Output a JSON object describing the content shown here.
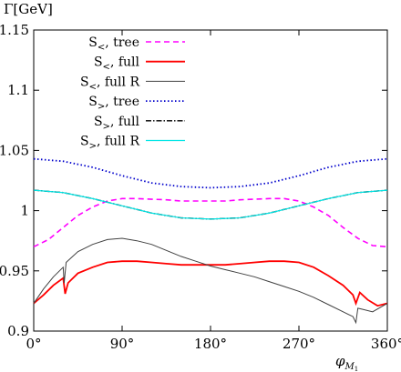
{
  "chart_data": {
    "type": "line",
    "ylabel": "Γ[GeV]",
    "xlabel": "φ",
    "xlabel_sub": "M",
    "xlabel_subsub": "1",
    "xlim": [
      0,
      360
    ],
    "ylim": [
      0.9,
      1.15
    ],
    "x_ticks": [
      0,
      90,
      180,
      270,
      360
    ],
    "x_tick_labels": [
      "0°",
      "90°",
      "180°",
      "270°",
      "360°"
    ],
    "y_ticks": [
      0.9,
      0.95,
      1.0,
      1.05,
      1.1,
      1.15
    ],
    "y_tick_labels": [
      "0.9",
      "0.95",
      "1",
      "1.05",
      "1.1",
      "1.15"
    ],
    "grid": false,
    "legend_position": "top-left",
    "series": [
      {
        "name": "S<, tree",
        "label_base": "S",
        "label_sub": "<",
        "label_rest": ", tree",
        "color": "#ff00ff",
        "dash": "6,4",
        "width": 1.6,
        "x": [
          0,
          15,
          30,
          45,
          60,
          75,
          90,
          105,
          120,
          135,
          150,
          165,
          180,
          195,
          210,
          225,
          240,
          255,
          270,
          285,
          300,
          315,
          330,
          345,
          360
        ],
        "y": [
          0.97,
          0.976,
          0.986,
          0.996,
          1.003,
          1.008,
          1.01,
          1.01,
          1.0095,
          1.009,
          1.008,
          1.008,
          1.008,
          1.008,
          1.009,
          1.0095,
          1.01,
          1.01,
          1.008,
          1.003,
          0.996,
          0.986,
          0.977,
          0.971,
          0.97
        ]
      },
      {
        "name": "S<, full",
        "label_base": "S",
        "label_sub": "<",
        "label_rest": ", full",
        "color": "#ff0000",
        "dash": "",
        "width": 1.8,
        "x": [
          0,
          10,
          20,
          30,
          32,
          35,
          45,
          60,
          75,
          90,
          105,
          120,
          135,
          150,
          165,
          180,
          195,
          210,
          225,
          240,
          255,
          270,
          285,
          300,
          315,
          320,
          325,
          328,
          332,
          340,
          350,
          360
        ],
        "y": [
          0.923,
          0.93,
          0.938,
          0.944,
          0.931,
          0.94,
          0.948,
          0.953,
          0.957,
          0.958,
          0.958,
          0.957,
          0.956,
          0.955,
          0.955,
          0.955,
          0.955,
          0.956,
          0.957,
          0.958,
          0.958,
          0.957,
          0.953,
          0.946,
          0.938,
          0.934,
          0.93,
          0.923,
          0.932,
          0.926,
          0.921,
          0.923
        ]
      },
      {
        "name": "S<, full R",
        "label_base": "S",
        "label_sub": "<",
        "label_rest": ", full R",
        "color": "#404040",
        "dash": "",
        "width": 1.0,
        "x": [
          0,
          10,
          20,
          30,
          31,
          33,
          45,
          60,
          75,
          90,
          105,
          120,
          135,
          150,
          165,
          180,
          195,
          210,
          225,
          240,
          255,
          270,
          285,
          300,
          315,
          325,
          328,
          330,
          335,
          345,
          360
        ],
        "y": [
          0.923,
          0.935,
          0.945,
          0.953,
          0.94,
          0.957,
          0.966,
          0.972,
          0.976,
          0.977,
          0.975,
          0.972,
          0.967,
          0.962,
          0.958,
          0.954,
          0.951,
          0.948,
          0.945,
          0.941,
          0.937,
          0.933,
          0.928,
          0.922,
          0.916,
          0.912,
          0.907,
          0.919,
          0.918,
          0.916,
          0.923
        ]
      },
      {
        "name": "S>, tree",
        "label_base": "S",
        "label_sub": ">",
        "label_rest": ", tree",
        "color": "#0000cc",
        "dash": "1.5,2.5",
        "width": 1.8,
        "x": [
          0,
          30,
          60,
          90,
          120,
          150,
          180,
          210,
          240,
          270,
          300,
          330,
          360
        ],
        "y": [
          1.043,
          1.041,
          1.036,
          1.029,
          1.023,
          1.02,
          1.019,
          1.02,
          1.023,
          1.029,
          1.036,
          1.041,
          1.043
        ]
      },
      {
        "name": "S>, full",
        "label_base": "S",
        "label_sub": ">",
        "label_rest": ", full",
        "color": "#000000",
        "dash": "6,2,1.5,2",
        "width": 1.4,
        "x": [
          0,
          30,
          60,
          90,
          120,
          150,
          180,
          210,
          240,
          270,
          300,
          330,
          360
        ],
        "y": [
          1.017,
          1.015,
          1.01,
          1.004,
          0.998,
          0.994,
          0.993,
          0.994,
          0.998,
          1.004,
          1.01,
          1.015,
          1.017
        ]
      },
      {
        "name": "S>, full R",
        "label_base": "S",
        "label_sub": ">",
        "label_rest": ", full R",
        "color": "#00e5e5",
        "dash": "",
        "width": 1.2,
        "x": [
          0,
          30,
          60,
          90,
          120,
          150,
          180,
          210,
          240,
          270,
          300,
          330,
          360
        ],
        "y": [
          1.017,
          1.015,
          1.01,
          1.004,
          0.998,
          0.994,
          0.993,
          0.994,
          0.998,
          1.004,
          1.01,
          1.015,
          1.017
        ]
      }
    ]
  }
}
